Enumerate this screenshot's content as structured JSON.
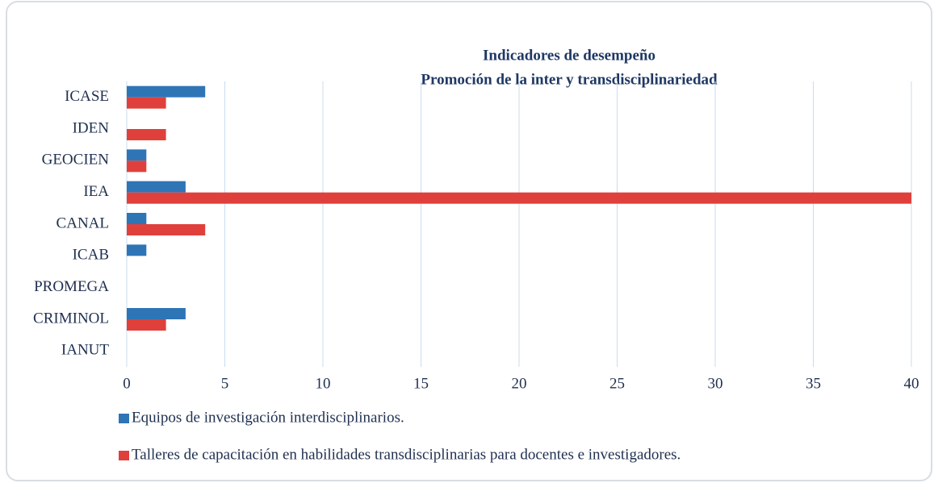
{
  "chart_data": {
    "type": "barh",
    "title": "Indicadores de desempeño",
    "subtitle": "Promoción de la inter y transdisciplinariedad",
    "categories": [
      "ICASE",
      "IDEN",
      "GEOCIEN",
      "IEA",
      "CANAL",
      "ICAB",
      "PROMEGA",
      "CRIMINOL",
      "IANUT"
    ],
    "series": [
      {
        "name": "Equipos de investigación interdisciplinarios.",
        "color": "#2e75b6",
        "values": [
          4,
          0,
          1,
          3,
          1,
          1,
          0,
          3,
          0
        ]
      },
      {
        "name": "Talleres de capacitación en habilidades transdisciplinarias para docentes e investigadores.",
        "color": "#e0403c",
        "values": [
          2,
          2,
          1,
          40,
          4,
          0,
          0,
          2,
          0
        ]
      }
    ],
    "xlim": [
      0,
      40
    ],
    "xticks": [
      0,
      5,
      10,
      15,
      20,
      25,
      30,
      35,
      40
    ],
    "grid": true,
    "legend": "bottom"
  }
}
